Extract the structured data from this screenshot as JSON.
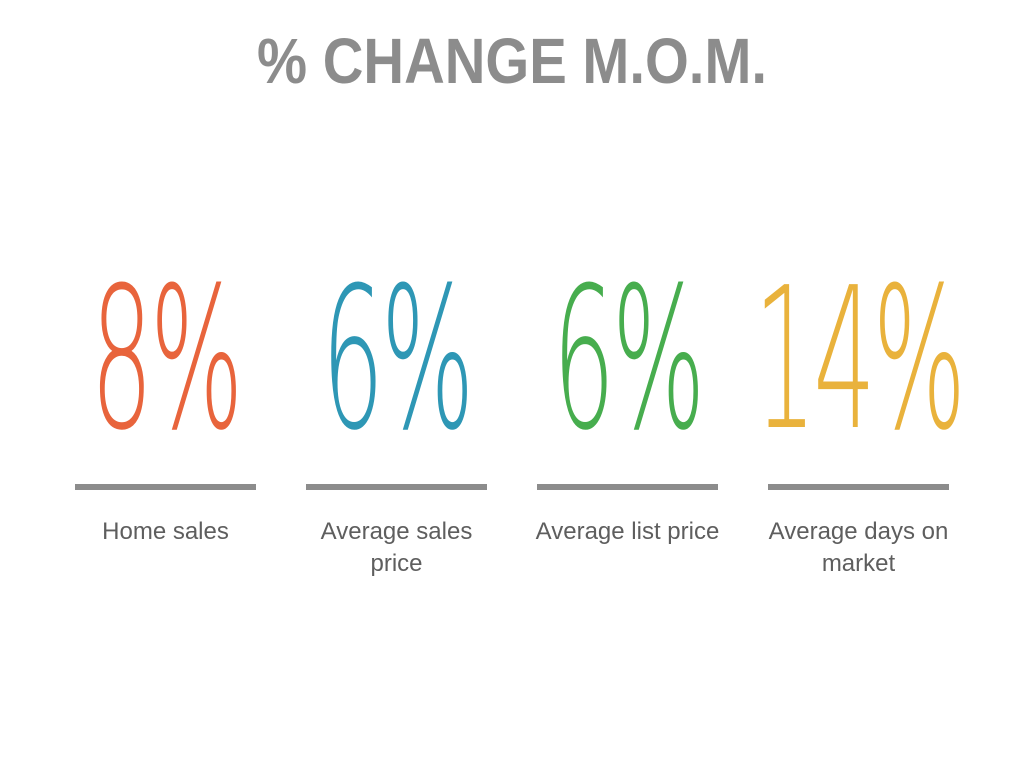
{
  "slide": {
    "title": "% CHANGE M.O.M."
  },
  "colors": {
    "title_gray": "#8C8C8C",
    "divider_gray": "#8C8C8C",
    "label_gray": "#5E5E5E",
    "orange": "#E8643C",
    "blue": "#2E97B5",
    "green": "#47AD4E",
    "yellow": "#E9B23C"
  },
  "stats": [
    {
      "value": "8%",
      "label": "Home sales",
      "color": "#E8643C"
    },
    {
      "value": "6%",
      "label": "Average sales price",
      "color": "#2E97B5"
    },
    {
      "value": "6%",
      "label": "Average list price",
      "color": "#47AD4E"
    },
    {
      "value": "14%",
      "label": "Average days on market",
      "color": "#E9B23C"
    }
  ],
  "chart_data": {
    "type": "table",
    "title": "% Change M.O.M.",
    "categories": [
      "Home sales",
      "Average sales price",
      "Average list price",
      "Average days on market"
    ],
    "values": [
      8,
      6,
      6,
      14
    ],
    "unit": "%",
    "value_colors": [
      "#E8643C",
      "#2E97B5",
      "#47AD4E",
      "#E9B23C"
    ],
    "layout": "four KPI columns, each big number above a gray rule and caption"
  }
}
